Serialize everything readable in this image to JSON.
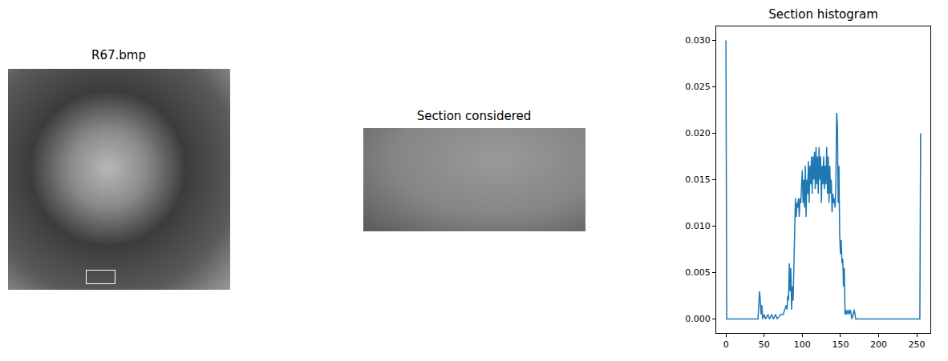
{
  "images": [
    {
      "title": "R67.bmp"
    },
    {
      "title": "Section considered"
    }
  ],
  "chart_data": {
    "type": "line",
    "title": "Section histogram",
    "color": "#1f77b4",
    "x": [
      0,
      1,
      42,
      43,
      44,
      45,
      46,
      47,
      48,
      50,
      52,
      55,
      57,
      60,
      62,
      65,
      67,
      70,
      72,
      75,
      77,
      79,
      80,
      81,
      82,
      83,
      84,
      85,
      86,
      87,
      88,
      89,
      90,
      91,
      92,
      93,
      94,
      95,
      96,
      97,
      98,
      99,
      100,
      101,
      102,
      103,
      104,
      105,
      106,
      107,
      108,
      109,
      110,
      111,
      112,
      113,
      114,
      115,
      116,
      117,
      118,
      119,
      120,
      121,
      122,
      123,
      124,
      125,
      126,
      127,
      128,
      129,
      130,
      131,
      132,
      133,
      134,
      135,
      136,
      137,
      138,
      139,
      140,
      141,
      142,
      143,
      144,
      145,
      146,
      147,
      148,
      149,
      150,
      151,
      152,
      153,
      154,
      155,
      156,
      157,
      158,
      160,
      161,
      163,
      165,
      168,
      170,
      254,
      255
    ],
    "values": [
      0.03,
      0,
      0,
      0.0015,
      0.003,
      0.002,
      0.0005,
      0.0015,
      0,
      0.0005,
      0,
      0.0005,
      0,
      0.0005,
      0,
      0.0005,
      0,
      0.0003,
      0.0005,
      0.0005,
      0.001,
      0.0015,
      0.001,
      0.0025,
      0.002,
      0.006,
      0.003,
      0.0055,
      0.001,
      0.0035,
      0.002,
      0.005,
      0.009,
      0.013,
      0.011,
      0.0125,
      0.012,
      0.013,
      0.011,
      0.013,
      0.0125,
      0.0145,
      0.016,
      0.0125,
      0.015,
      0.012,
      0.0165,
      0.011,
      0.015,
      0.0135,
      0.017,
      0.0125,
      0.0165,
      0.0145,
      0.0175,
      0.0135,
      0.0175,
      0.015,
      0.018,
      0.014,
      0.0185,
      0.0145,
      0.0175,
      0.0135,
      0.0185,
      0.015,
      0.0175,
      0.0125,
      0.0165,
      0.0145,
      0.0175,
      0.014,
      0.0165,
      0.0145,
      0.0185,
      0.0135,
      0.0175,
      0.0125,
      0.0165,
      0.0135,
      0.015,
      0.0115,
      0.0135,
      0.0125,
      0.013,
      0.012,
      0.0145,
      0.0222,
      0.021,
      0.0125,
      0.0165,
      0.009,
      0.007,
      0.0085,
      0.006,
      0.0065,
      0.0035,
      0.0055,
      0.0005,
      0.001,
      0.0005,
      0.001,
      0.0005,
      0.001,
      0,
      0.001,
      0,
      0,
      0.02
    ],
    "xlim": [
      -12.75,
      267.75
    ],
    "xticks": [
      0,
      50,
      100,
      150,
      200,
      250
    ],
    "ylim": [
      -0.0015,
      0.0315
    ],
    "yticks": [
      {
        "value": 0,
        "label": "0.000"
      },
      {
        "value": 0.005,
        "label": "0.005"
      },
      {
        "value": 0.01,
        "label": "0.010"
      },
      {
        "value": 0.015,
        "label": "0.015"
      },
      {
        "value": 0.02,
        "label": "0.020"
      },
      {
        "value": 0.025,
        "label": "0.025"
      },
      {
        "value": 0.03,
        "label": "0.030"
      }
    ],
    "grid": false
  }
}
